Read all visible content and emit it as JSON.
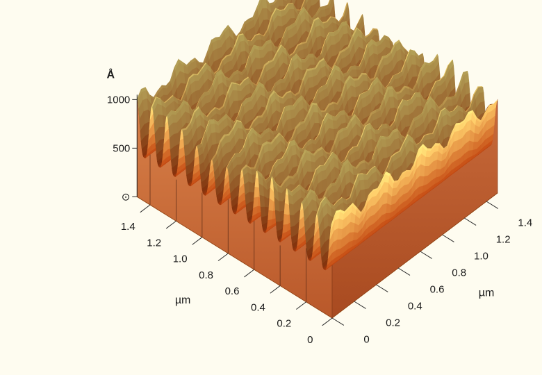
{
  "chart_data": {
    "type": "surface",
    "x_axis": {
      "label": "µm",
      "ticks": [
        1.4,
        1.2,
        1.0,
        0.8,
        0.6,
        0.4,
        0.2,
        0
      ],
      "tick_labels": [
        "1.4",
        "1.2",
        "1.0",
        "0.8",
        "0.6",
        "0.4",
        "0.2",
        "0"
      ],
      "range": [
        0,
        1.5
      ]
    },
    "y_axis": {
      "label": "µm",
      "ticks": [
        0,
        0.2,
        0.4,
        0.6,
        0.8,
        1.0,
        1.2,
        1.4
      ],
      "tick_labels": [
        "0",
        "0.2",
        "0.4",
        "0.6",
        "0.8",
        "1.0",
        "1.2",
        "1.4"
      ],
      "range": [
        0,
        1.5
      ]
    },
    "z_axis": {
      "unit": "Å",
      "ticks": [
        0,
        500,
        1000
      ],
      "tick_labels": [
        "⊙",
        "500",
        "1000"
      ],
      "range": [
        0,
        1000
      ]
    },
    "grating": {
      "ridges": 13,
      "ridge_height": 600,
      "base_height": 450
    },
    "colors": {
      "background": "#fefcf0",
      "floor": "#f8d873",
      "surface_low": "#b8420f",
      "surface_high": "#ffe27a",
      "wall": "#c56a35",
      "grid_line": "#2a2a2a"
    }
  }
}
